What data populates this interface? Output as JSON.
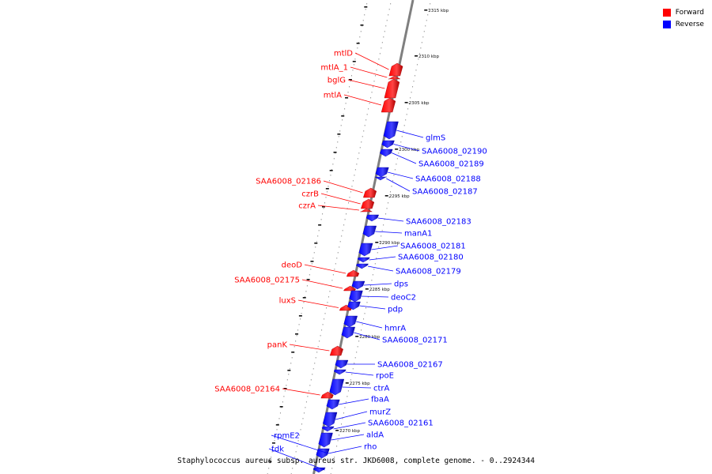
{
  "caption": "Staphylococcus aureus subsp. aureus str. JKD6008, complete genome. - 0..2924344",
  "colors": {
    "forward": "#ff0000",
    "reverse": "#0000ff",
    "backbone": "#808080"
  },
  "legend": [
    {
      "label": "Forward",
      "color": "#ff0000"
    },
    {
      "label": "Reverse",
      "color": "#0000ff"
    }
  ],
  "scale": {
    "unit": "kbp",
    "labels": [
      2270,
      2275,
      2280,
      2285,
      2290,
      2295,
      2300,
      2305,
      2310,
      2315
    ]
  },
  "genes": [
    {
      "name": "mtlD",
      "strand": "forward"
    },
    {
      "name": "mtlA_1",
      "strand": "forward"
    },
    {
      "name": "bglG",
      "strand": "forward"
    },
    {
      "name": "mtlA",
      "strand": "forward"
    },
    {
      "name": "glmS",
      "strand": "reverse"
    },
    {
      "name": "SAA6008_02190",
      "strand": "reverse"
    },
    {
      "name": "SAA6008_02189",
      "strand": "reverse"
    },
    {
      "name": "SAA6008_02188",
      "strand": "reverse"
    },
    {
      "name": "SAA6008_02187",
      "strand": "reverse"
    },
    {
      "name": "SAA6008_02186",
      "strand": "forward"
    },
    {
      "name": "czrB",
      "strand": "forward"
    },
    {
      "name": "czrA",
      "strand": "forward"
    },
    {
      "name": "SAA6008_02183",
      "strand": "reverse"
    },
    {
      "name": "manA1",
      "strand": "reverse"
    },
    {
      "name": "SAA6008_02181",
      "strand": "reverse"
    },
    {
      "name": "SAA6008_02180",
      "strand": "reverse"
    },
    {
      "name": "SAA6008_02179",
      "strand": "reverse"
    },
    {
      "name": "deoD",
      "strand": "forward"
    },
    {
      "name": "SAA6008_02175",
      "strand": "forward"
    },
    {
      "name": "dps",
      "strand": "reverse"
    },
    {
      "name": "deoC2",
      "strand": "reverse"
    },
    {
      "name": "luxS",
      "strand": "forward"
    },
    {
      "name": "pdp",
      "strand": "reverse"
    },
    {
      "name": "hmrA",
      "strand": "reverse"
    },
    {
      "name": "SAA6008_02171",
      "strand": "reverse"
    },
    {
      "name": "panK",
      "strand": "forward"
    },
    {
      "name": "SAA6008_02167",
      "strand": "reverse"
    },
    {
      "name": "rpoE",
      "strand": "reverse"
    },
    {
      "name": "ctrA",
      "strand": "reverse"
    },
    {
      "name": "SAA6008_02164",
      "strand": "forward"
    },
    {
      "name": "fbaA",
      "strand": "reverse"
    },
    {
      "name": "murZ",
      "strand": "reverse"
    },
    {
      "name": "SAA6008_02161",
      "strand": "reverse"
    },
    {
      "name": "aldA",
      "strand": "reverse"
    },
    {
      "name": "rpmE2",
      "strand": "reverse"
    },
    {
      "name": "rho",
      "strand": "reverse"
    },
    {
      "name": "tdk",
      "strand": "reverse"
    }
  ]
}
